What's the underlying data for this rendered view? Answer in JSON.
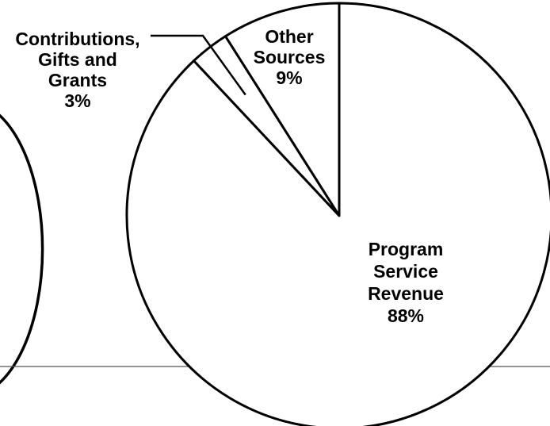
{
  "chart_data": {
    "type": "pie",
    "title": "",
    "start_angle_deg": 0,
    "direction": "counterclockwise",
    "slices": [
      {
        "label_lines": [
          "Other",
          "Sources",
          "9%"
        ],
        "value": 9
      },
      {
        "label_lines": [
          "Contributions,",
          "Gifts and",
          "Grants",
          "3%"
        ],
        "value": 3
      },
      {
        "label_lines": [
          "Program",
          "Service",
          "Revenue",
          "88%"
        ],
        "value": 88
      }
    ],
    "fill_color": "#ffffff",
    "stroke_color": "#000000"
  }
}
